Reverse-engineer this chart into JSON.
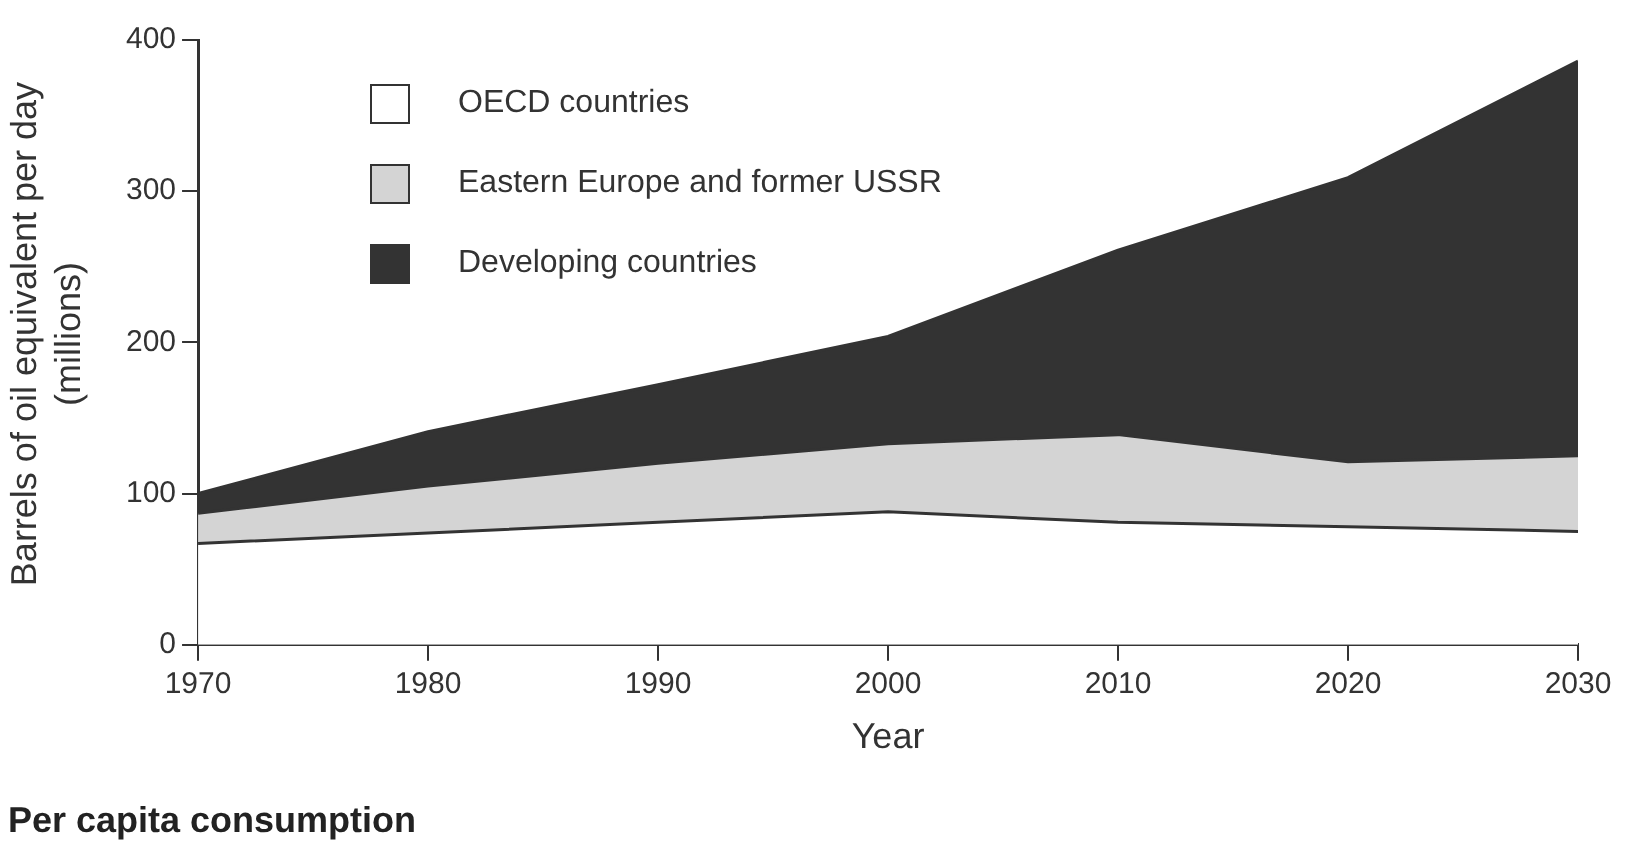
{
  "chart_data": {
    "type": "area",
    "stacked": true,
    "xlabel": "Year",
    "ylabel": "Barrels of oil equivalent per day (millions)",
    "x": [
      1970,
      1980,
      1990,
      2000,
      2010,
      2020,
      2030
    ],
    "series": [
      {
        "name": "OECD countries",
        "color": "#ffffff",
        "values": [
          67,
          74,
          81,
          88,
          81,
          78,
          75
        ]
      },
      {
        "name": "Eastern Europe and former USSR",
        "color": "#d4d4d4",
        "values": [
          20,
          31,
          39,
          45,
          58,
          43,
          50
        ]
      },
      {
        "name": "Developing countries",
        "color": "#333333",
        "values": [
          13,
          36,
          52,
          71,
          122,
          188,
          261
        ]
      }
    ],
    "xlim": [
      1970,
      2030
    ],
    "xticks": [
      1970,
      1980,
      1990,
      2000,
      2010,
      2020,
      2030
    ],
    "ylim": [
      0,
      400
    ],
    "yticks": [
      0,
      100,
      200,
      300,
      400
    ],
    "grid": false,
    "legend": "top left",
    "marker": "none",
    "annotations": [
      "Per capita consumption"
    ]
  }
}
